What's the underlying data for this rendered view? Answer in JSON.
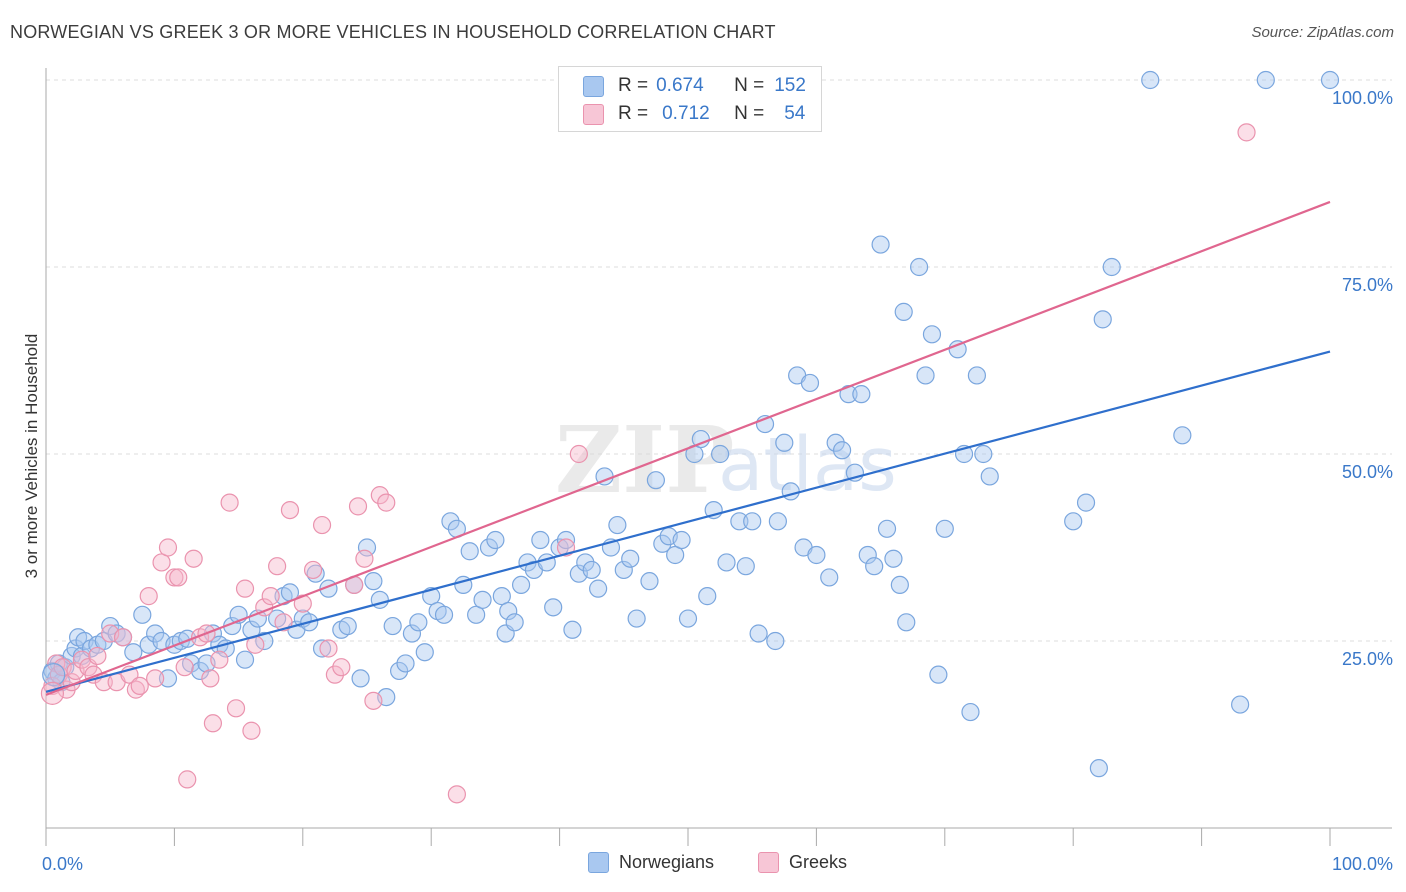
{
  "title": "NORWEGIAN VS GREEK 3 OR MORE VEHICLES IN HOUSEHOLD CORRELATION CHART",
  "source": "Source: ZipAtlas.com",
  "watermark": "ZIPatlas",
  "legend": {
    "r_label": "R =",
    "n_label": "N =",
    "rows": [
      {
        "r": "0.674",
        "n": "152"
      },
      {
        "r": "0.712",
        "n": "54"
      }
    ]
  },
  "chart_data": {
    "type": "scatter",
    "title": "NORWEGIAN VS GREEK 3 OR MORE VEHICLES IN HOUSEHOLD CORRELATION CHART",
    "xlabel": "",
    "ylabel": "3 or more Vehicles in Household",
    "xlim": [
      0,
      100
    ],
    "ylim": [
      0,
      102
    ],
    "x_tick_labels": [
      "0.0%",
      "100.0%"
    ],
    "y_ticks": [
      25,
      50,
      75,
      100
    ],
    "y_tick_labels": [
      "25.0%",
      "50.0%",
      "75.0%",
      "100.0%"
    ],
    "grid": true,
    "legend_position": "top-center",
    "colors": {
      "Norwegians": {
        "fill": "#a9c8f0",
        "stroke": "#7aa6de",
        "line": "#2f6fcc"
      },
      "Greeks": {
        "fill": "#f7b8cb",
        "stroke": "#ea93ae",
        "line": "#e0668f"
      }
    },
    "series": [
      {
        "name": "Norwegians",
        "r": 0.674,
        "n": 152,
        "trend": [
          [
            0,
            18.2
          ],
          [
            100,
            63.7
          ]
        ],
        "points": [
          [
            0.5,
            21
          ],
          [
            0.8,
            20
          ],
          [
            1,
            22
          ],
          [
            1.2,
            19.5
          ],
          [
            1.5,
            21.5
          ],
          [
            2,
            23
          ],
          [
            2.3,
            24
          ],
          [
            2.5,
            25.5
          ],
          [
            2.8,
            23
          ],
          [
            3,
            25
          ],
          [
            3.5,
            24
          ],
          [
            4,
            24.5
          ],
          [
            4.5,
            25
          ],
          [
            5,
            27
          ],
          [
            5.5,
            26
          ],
          [
            6,
            25.5
          ],
          [
            6.8,
            23.5
          ],
          [
            7.5,
            28.5
          ],
          [
            8,
            24.5
          ],
          [
            8.5,
            26
          ],
          [
            9,
            25
          ],
          [
            9.5,
            20
          ],
          [
            10,
            24.5
          ],
          [
            10.5,
            25
          ],
          [
            11,
            25.3
          ],
          [
            11.3,
            22
          ],
          [
            12,
            21
          ],
          [
            12.5,
            22
          ],
          [
            13,
            26
          ],
          [
            13.5,
            24.5
          ],
          [
            14,
            24
          ],
          [
            14.5,
            27
          ],
          [
            15,
            28.5
          ],
          [
            15.5,
            22.5
          ],
          [
            16,
            26.5
          ],
          [
            16.5,
            28
          ],
          [
            17,
            25
          ],
          [
            18,
            28
          ],
          [
            18.5,
            31
          ],
          [
            19,
            31.5
          ],
          [
            19.5,
            26.5
          ],
          [
            20,
            28
          ],
          [
            20.5,
            27.5
          ],
          [
            21,
            34
          ],
          [
            21.5,
            24
          ],
          [
            22,
            32
          ],
          [
            23,
            26.5
          ],
          [
            23.5,
            27
          ],
          [
            24,
            32.5
          ],
          [
            24.5,
            20
          ],
          [
            25,
            37.5
          ],
          [
            25.5,
            33
          ],
          [
            26,
            30.5
          ],
          [
            26.5,
            17.5
          ],
          [
            27,
            27
          ],
          [
            27.5,
            21
          ],
          [
            28,
            22
          ],
          [
            28.5,
            26
          ],
          [
            29,
            27.5
          ],
          [
            29.5,
            23.5
          ],
          [
            30,
            31
          ],
          [
            30.5,
            29
          ],
          [
            31,
            28.5
          ],
          [
            31.5,
            41
          ],
          [
            32,
            40
          ],
          [
            32.5,
            32.5
          ],
          [
            33,
            37
          ],
          [
            33.5,
            28.5
          ],
          [
            34,
            30.5
          ],
          [
            34.5,
            37.5
          ],
          [
            35,
            38.5
          ],
          [
            35.5,
            31
          ],
          [
            35.8,
            26
          ],
          [
            36,
            29
          ],
          [
            36.5,
            27.5
          ],
          [
            37,
            32.5
          ],
          [
            37.5,
            35.5
          ],
          [
            38,
            34.5
          ],
          [
            38.5,
            38.5
          ],
          [
            39,
            35.5
          ],
          [
            39.5,
            29.5
          ],
          [
            40,
            37.5
          ],
          [
            40.5,
            38.5
          ],
          [
            41,
            26.5
          ],
          [
            41.5,
            34
          ],
          [
            42,
            35.5
          ],
          [
            42.5,
            34.5
          ],
          [
            43,
            32
          ],
          [
            43.5,
            47
          ],
          [
            44,
            37.5
          ],
          [
            44.5,
            40.5
          ],
          [
            45,
            34.5
          ],
          [
            45.5,
            36
          ],
          [
            46,
            28
          ],
          [
            47,
            33
          ],
          [
            47.5,
            46.5
          ],
          [
            48,
            38
          ],
          [
            48.5,
            39
          ],
          [
            49,
            36.5
          ],
          [
            49.5,
            38.5
          ],
          [
            50,
            28
          ],
          [
            50.5,
            50
          ],
          [
            51,
            52
          ],
          [
            51.5,
            31
          ],
          [
            52,
            42.5
          ],
          [
            52.5,
            50
          ],
          [
            53,
            35.5
          ],
          [
            54,
            41
          ],
          [
            54.5,
            35
          ],
          [
            55,
            41
          ],
          [
            55.5,
            26
          ],
          [
            56,
            54
          ],
          [
            56.8,
            25
          ],
          [
            57,
            41
          ],
          [
            57.5,
            51.5
          ],
          [
            58,
            45
          ],
          [
            58.5,
            60.5
          ],
          [
            59,
            37.5
          ],
          [
            59.5,
            59.5
          ],
          [
            60,
            36.5
          ],
          [
            61,
            33.5
          ],
          [
            61.5,
            51.5
          ],
          [
            62,
            50.5
          ],
          [
            62.5,
            58
          ],
          [
            63,
            47.5
          ],
          [
            63.5,
            58
          ],
          [
            64,
            36.5
          ],
          [
            64.5,
            35
          ],
          [
            65,
            78
          ],
          [
            65.5,
            40
          ],
          [
            66,
            36
          ],
          [
            66.5,
            32.5
          ],
          [
            66.8,
            69
          ],
          [
            67,
            27.5
          ],
          [
            68,
            75
          ],
          [
            68.5,
            60.5
          ],
          [
            69,
            66
          ],
          [
            69.5,
            20.5
          ],
          [
            70,
            40
          ],
          [
            71,
            64
          ],
          [
            71.5,
            50
          ],
          [
            72,
            15.5
          ],
          [
            72.5,
            60.5
          ],
          [
            73,
            50
          ],
          [
            73.5,
            47
          ],
          [
            80,
            41
          ],
          [
            81,
            43.5
          ],
          [
            82,
            8
          ],
          [
            82.3,
            68
          ],
          [
            83,
            75
          ],
          [
            86,
            100
          ],
          [
            88.5,
            52.5
          ],
          [
            93,
            16.5
          ],
          [
            95,
            100
          ],
          [
            100,
            100
          ]
        ]
      },
      {
        "name": "Greeks",
        "r": 0.712,
        "n": 54,
        "trend": [
          [
            0,
            17.8
          ],
          [
            100,
            83.7
          ]
        ],
        "points": [
          [
            0.5,
            19
          ],
          [
            0.8,
            22
          ],
          [
            1,
            20.5
          ],
          [
            1.3,
            21.5
          ],
          [
            1.6,
            18.5
          ],
          [
            2,
            19.5
          ],
          [
            2.3,
            21
          ],
          [
            2.8,
            22.5
          ],
          [
            3.3,
            21.5
          ],
          [
            3.7,
            20.5
          ],
          [
            4,
            23
          ],
          [
            4.5,
            19.5
          ],
          [
            5,
            26
          ],
          [
            5.5,
            19.5
          ],
          [
            6,
            25.5
          ],
          [
            6.5,
            20.5
          ],
          [
            7,
            18.5
          ],
          [
            7.3,
            19
          ],
          [
            8,
            31
          ],
          [
            8.5,
            20
          ],
          [
            9,
            35.5
          ],
          [
            9.5,
            37.5
          ],
          [
            10,
            33.5
          ],
          [
            10.3,
            33.5
          ],
          [
            10.8,
            21.5
          ],
          [
            11,
            6.5
          ],
          [
            11.5,
            36
          ],
          [
            12,
            25.5
          ],
          [
            12.5,
            26
          ],
          [
            12.8,
            20
          ],
          [
            13,
            14
          ],
          [
            13.5,
            22.5
          ],
          [
            14.3,
            43.5
          ],
          [
            14.8,
            16
          ],
          [
            15.5,
            32
          ],
          [
            16,
            13
          ],
          [
            16.3,
            24.5
          ],
          [
            17,
            29.5
          ],
          [
            17.5,
            31
          ],
          [
            18,
            35
          ],
          [
            18.5,
            27.5
          ],
          [
            19,
            42.5
          ],
          [
            20,
            30
          ],
          [
            20.8,
            34.5
          ],
          [
            21.5,
            40.5
          ],
          [
            22,
            24
          ],
          [
            22.5,
            20.5
          ],
          [
            23,
            21.5
          ],
          [
            24,
            32.5
          ],
          [
            24.3,
            43
          ],
          [
            24.8,
            36
          ],
          [
            25.5,
            17
          ],
          [
            26,
            44.5
          ],
          [
            26.5,
            43.5
          ],
          [
            32,
            4.5
          ],
          [
            40.5,
            37.5
          ],
          [
            41.5,
            50
          ],
          [
            93.5,
            93
          ]
        ]
      }
    ]
  }
}
